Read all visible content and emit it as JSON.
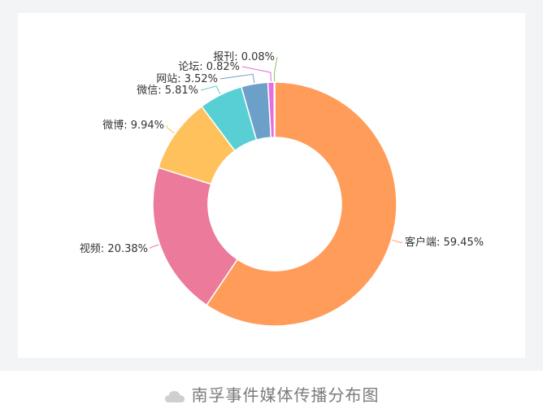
{
  "caption": {
    "text": "南孚事件媒体传播分布图",
    "icon": "cloud-icon"
  },
  "chart_data": {
    "type": "pie",
    "donut": true,
    "title": "",
    "slices": [
      {
        "name": "客户端",
        "value": 59.45,
        "label": "客户端: 59.45%",
        "color": "#ff9c5a"
      },
      {
        "name": "视频",
        "value": 20.38,
        "label": "视频: 20.38%",
        "color": "#ec7b9b"
      },
      {
        "name": "微博",
        "value": 9.94,
        "label": "微博: 9.94%",
        "color": "#ffc15c"
      },
      {
        "name": "微信",
        "value": 5.81,
        "label": "微信: 5.81%",
        "color": "#58cfd3"
      },
      {
        "name": "网站",
        "value": 3.52,
        "label": "网站: 3.52%",
        "color": "#6ca0c8"
      },
      {
        "name": "论坛",
        "value": 0.82,
        "label": "论坛: 0.82%",
        "color": "#e56ee0"
      },
      {
        "name": "报刊",
        "value": 0.08,
        "label": "报刊: 0.08%",
        "color": "#86c46c"
      }
    ]
  }
}
